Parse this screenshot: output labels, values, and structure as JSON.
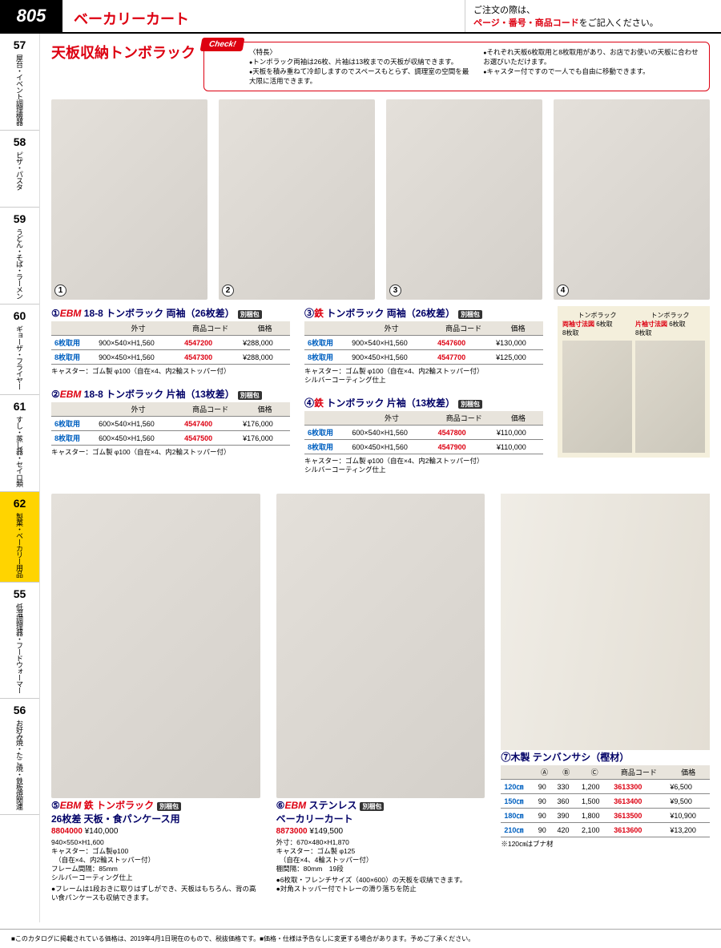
{
  "header": {
    "page_number": "805",
    "category_title": "ベーカリーカート",
    "order_note_1": "ご注文の際は、",
    "order_note_2": "ページ・番号・商品コード",
    "order_note_3": "をご記入ください。"
  },
  "sidebar": [
    {
      "num": "57",
      "label": "屋台・イベント調理機器"
    },
    {
      "num": "58",
      "label": "ピザ・パスタ"
    },
    {
      "num": "59",
      "label": "うどん・そば・ラーメン"
    },
    {
      "num": "60",
      "label": "ギョーザ・フライヤー"
    },
    {
      "num": "61",
      "label": "すし・蒸し器・セイロ類"
    },
    {
      "num": "62",
      "label": "製菓・ベーカリー用品",
      "active": true
    },
    {
      "num": "55",
      "label": "低温調理器・フードウォーマー"
    },
    {
      "num": "56",
      "label": "お好み焼・たこ焼・鉄板焼関連"
    }
  ],
  "section_title": "天板収納トンボラック",
  "check_tag": "Check!",
  "check_label": "〈特長〉",
  "check_left": [
    "トンボラック両袖は26枚、片袖は13枚までの天板が収納できます。",
    "天板を積み重ねて冷却しますのでスペースもとらず、調理室の空間を最大限に活用できます。"
  ],
  "check_right": [
    "それぞれ天板6枚取用と8枚取用があり、お店でお使いの天板に合わせお選びいただけます。",
    "キャスター付ですので一人でも自由に移動できます。"
  ],
  "headers": {
    "size": "外寸",
    "code": "商品コード",
    "price": "価格"
  },
  "products": [
    {
      "num": "①",
      "ebm": "EBM",
      "name": "18-8 トンボラック 両袖（26枚差）",
      "badge": "別梱包",
      "rows": [
        {
          "type": "6枚取用",
          "size": "900×540×H1,560",
          "code": "4547200",
          "price": "¥288,000"
        },
        {
          "type": "8枚取用",
          "size": "900×450×H1,560",
          "code": "4547300",
          "price": "¥288,000"
        }
      ],
      "note": "キャスター：ゴム製 φ100（自在×4、内2輪ストッパー付）"
    },
    {
      "num": "②",
      "ebm": "EBM",
      "name": "18-8 トンボラック 片袖（13枚差）",
      "badge": "別梱包",
      "rows": [
        {
          "type": "6枚取用",
          "size": "600×540×H1,560",
          "code": "4547400",
          "price": "¥176,000"
        },
        {
          "type": "8枚取用",
          "size": "600×450×H1,560",
          "code": "4547500",
          "price": "¥176,000"
        }
      ],
      "note": "キャスター：ゴム製 φ100（自在×4、内2輪ストッパー付）"
    },
    {
      "num": "③",
      "fe": "鉄",
      "name": "トンボラック 両袖（26枚差）",
      "badge": "別梱包",
      "rows": [
        {
          "type": "6枚取用",
          "size": "900×540×H1,560",
          "code": "4547600",
          "price": "¥130,000"
        },
        {
          "type": "8枚取用",
          "size": "900×450×H1,560",
          "code": "4547700",
          "price": "¥125,000"
        }
      ],
      "note": "キャスター：ゴム製 φ100（自在×4、内2輪ストッパー付）\nシルバーコーティング仕上"
    },
    {
      "num": "④",
      "fe": "鉄",
      "name": "トンボラック 片袖（13枚差）",
      "badge": "別梱包",
      "rows": [
        {
          "type": "6枚取用",
          "size": "600×540×H1,560",
          "code": "4547800",
          "price": "¥110,000"
        },
        {
          "type": "8枚取用",
          "size": "600×450×H1,560",
          "code": "4547900",
          "price": "¥110,000"
        }
      ],
      "note": "キャスター：ゴム製 φ100（自在×4、内2輪ストッパー付）\nシルバーコーティング仕上"
    }
  ],
  "diagram": {
    "t1": "トンボラック",
    "t2": "トンボラック",
    "l1": "両袖寸法図",
    "l2": "片袖寸法図",
    "s1": "6枚取\n8枚取",
    "s2": "6枚取\n8枚取"
  },
  "product5": {
    "num": "⑤",
    "ebm": "EBM",
    "name1": "鉄 トンボラック",
    "name2": "26枚差 天板・食パンケース用",
    "badge": "別梱包",
    "code": "8804000",
    "price": "¥140,000",
    "spec": "940×550×H1,600\nキャスター：ゴム製φ100\n　（自在×4、内2輪ストッパー付）\nフレーム間隔：85mm\nシルバーコーティング仕上",
    "bullet": "●フレームは1段おきに取りはずしができ、天板はもちろん、背の高い食パンケースも収納できます。"
  },
  "product6": {
    "num": "⑥",
    "ebm": "EBM",
    "name1": "ステンレス",
    "name2": "ベーカリーカート",
    "badge": "別梱包",
    "code": "8873000",
    "price": "¥149,500",
    "spec": "外寸：670×480×H1,870\nキャスター：ゴム製 φ125\n　（自在×4、4輪ストッパー付）\n棚間隔：80mm　19段",
    "bullets": [
      "●6枚取・フレンチサイズ（400×600）の天板を収納できます。",
      "●対角ストッパー付でトレーの滑り落ちを防止"
    ]
  },
  "product7": {
    "num": "⑦",
    "name": "木製 テンバンサシ（樫材）",
    "headers": {
      "a": "Ⓐ",
      "b": "Ⓑ",
      "c": "Ⓒ",
      "code": "商品コード",
      "price": "価格"
    },
    "rows": [
      {
        "len": "120㎝",
        "a": "90",
        "b": "330",
        "c": "1,200",
        "code": "3613300",
        "price": "¥6,500"
      },
      {
        "len": "150㎝",
        "a": "90",
        "b": "360",
        "c": "1,500",
        "code": "3613400",
        "price": "¥9,500"
      },
      {
        "len": "180㎝",
        "a": "90",
        "b": "390",
        "c": "1,800",
        "code": "3613500",
        "price": "¥10,900"
      },
      {
        "len": "210㎝",
        "a": "90",
        "b": "420",
        "c": "2,100",
        "code": "3613600",
        "price": "¥13,200"
      }
    ],
    "note": "※120㎝はブナ材"
  },
  "footer": "■このカタログに掲載されている価格は、2019年4月1日現在のもので、税抜価格です。■価格・仕様は予告なしに変更する場合があります。予めご了承ください。"
}
